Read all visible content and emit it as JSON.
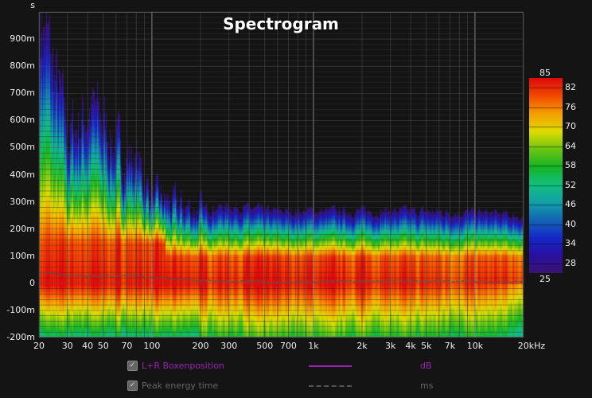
{
  "chart_data": {
    "type": "heatmap",
    "title": "Spectrogram",
    "x_axis": {
      "scale": "log",
      "range": [
        20,
        20000
      ],
      "unit": "Hz",
      "tick_labels": [
        "20",
        "30",
        "40",
        "50",
        "70",
        "100",
        "200",
        "300",
        "500",
        "700",
        "1k",
        "2k",
        "3k",
        "4k",
        "5k",
        "7k",
        "10k",
        "20kHz"
      ],
      "tick_values": [
        20,
        30,
        40,
        50,
        70,
        100,
        200,
        300,
        500,
        700,
        1000,
        2000,
        3000,
        4000,
        5000,
        7000,
        10000,
        20000
      ]
    },
    "y_axis": {
      "unit_label": "s",
      "range_ms": [
        -200,
        1000
      ],
      "tick_labels": [
        "900m",
        "800m",
        "700m",
        "600m",
        "500m",
        "400m",
        "300m",
        "200m",
        "100m",
        "0",
        "-100m",
        "-200m"
      ],
      "tick_values_ms": [
        900,
        800,
        700,
        600,
        500,
        400,
        300,
        200,
        100,
        0,
        -100,
        -200
      ]
    },
    "colorbar": {
      "unit": "dB",
      "min": 25,
      "max": 85,
      "ticks": [
        82,
        76,
        70,
        64,
        58,
        52,
        46,
        40,
        34,
        28
      ],
      "colors": [
        "#3a1470",
        "#2a0fa0",
        "#1528c8",
        "#1464b4",
        "#12a0a8",
        "#12c080",
        "#14b424",
        "#6cc414",
        "#e0dc00",
        "#f4a000",
        "#f24a00",
        "#e00a0a"
      ]
    },
    "decay_envelope_ms": {
      "freq_hz": [
        20,
        25,
        30,
        40,
        50,
        60,
        80,
        100,
        150,
        200,
        300,
        500,
        1000,
        3000,
        10000,
        20000
      ],
      "top_ms": [
        1000,
        750,
        550,
        650,
        600,
        500,
        450,
        320,
        290,
        280,
        290,
        270,
        270,
        270,
        265,
        250
      ]
    },
    "peak_energy_time_ms": {
      "freq_hz": [
        20,
        30,
        50,
        80,
        100,
        200,
        500,
        1000,
        5000,
        20000
      ],
      "values": [
        40,
        30,
        25,
        30,
        20,
        10,
        5,
        5,
        10,
        5
      ]
    },
    "grid": true,
    "legend": [
      {
        "label": "L+R Boxenposition",
        "unit": "dB",
        "color": "#9a22b8",
        "style": "solid",
        "checked": true
      },
      {
        "label": "Peak energy time",
        "unit": "ms",
        "color": "#666666",
        "style": "dashed",
        "checked": true
      }
    ],
    "legend_placement": "bottom"
  }
}
